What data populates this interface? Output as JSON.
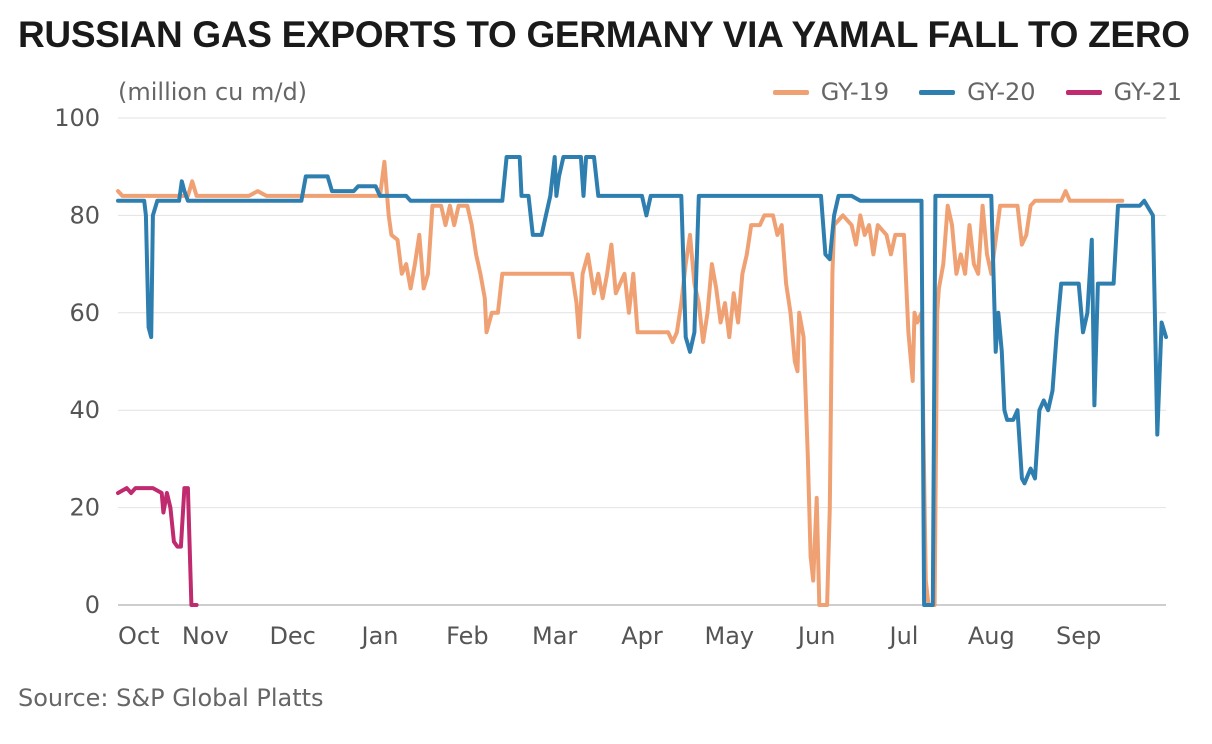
{
  "title": "RUSSIAN GAS EXPORTS TO GERMANY VIA YAMAL FALL TO ZERO",
  "unit_label": "(million cu m/d)",
  "source": "Source: S&P Global Platts",
  "chart_data": {
    "type": "line",
    "ylim": [
      0,
      100
    ],
    "xlim": [
      0,
      12
    ],
    "y_ticks": [
      0,
      20,
      40,
      60,
      80,
      100
    ],
    "y_tick_labels": [
      "0",
      "20",
      "40",
      "60",
      "80",
      "100"
    ],
    "x_ticks": [
      0,
      1,
      2,
      3,
      4,
      5,
      6,
      7,
      8,
      9,
      10,
      11
    ],
    "x_tick_labels": [
      "Oct",
      "Nov",
      "Dec",
      "Jan",
      "Feb",
      "Mar",
      "Apr",
      "May",
      "Jun",
      "Jul",
      "Aug",
      "Sep"
    ],
    "grid": true,
    "legend_position": "top-right",
    "series": [
      {
        "name": "GY-19",
        "color": "#f0a173",
        "points": [
          [
            0.0,
            85
          ],
          [
            0.05,
            84
          ],
          [
            0.5,
            84
          ],
          [
            0.8,
            84
          ],
          [
            0.85,
            87
          ],
          [
            0.9,
            84
          ],
          [
            1.5,
            84
          ],
          [
            1.6,
            85
          ],
          [
            1.7,
            84
          ],
          [
            2.5,
            84
          ],
          [
            3.0,
            84
          ],
          [
            3.05,
            91
          ],
          [
            3.1,
            80
          ],
          [
            3.13,
            76
          ],
          [
            3.2,
            75
          ],
          [
            3.25,
            68
          ],
          [
            3.3,
            70
          ],
          [
            3.35,
            65
          ],
          [
            3.4,
            70
          ],
          [
            3.45,
            76
          ],
          [
            3.5,
            65
          ],
          [
            3.55,
            68
          ],
          [
            3.6,
            82
          ],
          [
            3.7,
            82
          ],
          [
            3.75,
            78
          ],
          [
            3.8,
            82
          ],
          [
            3.85,
            78
          ],
          [
            3.9,
            82
          ],
          [
            4.0,
            82
          ],
          [
            4.05,
            78
          ],
          [
            4.1,
            72
          ],
          [
            4.15,
            68
          ],
          [
            4.2,
            63
          ],
          [
            4.22,
            56
          ],
          [
            4.28,
            60
          ],
          [
            4.35,
            60
          ],
          [
            4.4,
            68
          ],
          [
            4.5,
            68
          ],
          [
            5.0,
            68
          ],
          [
            5.2,
            68
          ],
          [
            5.25,
            62
          ],
          [
            5.28,
            55
          ],
          [
            5.32,
            68
          ],
          [
            5.38,
            72
          ],
          [
            5.45,
            64
          ],
          [
            5.5,
            68
          ],
          [
            5.55,
            63
          ],
          [
            5.6,
            68
          ],
          [
            5.65,
            74
          ],
          [
            5.7,
            64
          ],
          [
            5.8,
            68
          ],
          [
            5.85,
            60
          ],
          [
            5.9,
            68
          ],
          [
            5.95,
            56
          ],
          [
            6.0,
            56
          ],
          [
            6.3,
            56
          ],
          [
            6.35,
            54
          ],
          [
            6.4,
            56
          ],
          [
            6.45,
            62
          ],
          [
            6.5,
            70
          ],
          [
            6.55,
            76
          ],
          [
            6.6,
            66
          ],
          [
            6.65,
            62
          ],
          [
            6.7,
            54
          ],
          [
            6.75,
            60
          ],
          [
            6.8,
            70
          ],
          [
            6.85,
            65
          ],
          [
            6.9,
            58
          ],
          [
            6.95,
            62
          ],
          [
            7.0,
            55
          ],
          [
            7.05,
            64
          ],
          [
            7.1,
            58
          ],
          [
            7.15,
            68
          ],
          [
            7.2,
            72
          ],
          [
            7.25,
            78
          ],
          [
            7.35,
            78
          ],
          [
            7.4,
            80
          ],
          [
            7.5,
            80
          ],
          [
            7.55,
            76
          ],
          [
            7.6,
            78
          ],
          [
            7.65,
            66
          ],
          [
            7.7,
            60
          ],
          [
            7.75,
            50
          ],
          [
            7.78,
            48
          ],
          [
            7.8,
            60
          ],
          [
            7.85,
            55
          ],
          [
            7.9,
            30
          ],
          [
            7.93,
            10
          ],
          [
            7.96,
            5
          ],
          [
            8.0,
            22
          ],
          [
            8.03,
            0
          ],
          [
            8.12,
            0
          ],
          [
            8.15,
            20
          ],
          [
            8.18,
            68
          ],
          [
            8.2,
            78
          ],
          [
            8.3,
            80
          ],
          [
            8.4,
            78
          ],
          [
            8.45,
            74
          ],
          [
            8.5,
            80
          ],
          [
            8.55,
            76
          ],
          [
            8.6,
            78
          ],
          [
            8.65,
            72
          ],
          [
            8.7,
            78
          ],
          [
            8.8,
            76
          ],
          [
            8.85,
            72
          ],
          [
            8.9,
            76
          ],
          [
            9.0,
            76
          ],
          [
            9.05,
            56
          ],
          [
            9.1,
            46
          ],
          [
            9.12,
            60
          ],
          [
            9.15,
            58
          ],
          [
            9.2,
            60
          ],
          [
            9.25,
            5
          ],
          [
            9.28,
            0
          ],
          [
            9.35,
            0
          ],
          [
            9.38,
            60
          ],
          [
            9.4,
            65
          ],
          [
            9.45,
            70
          ],
          [
            9.5,
            82
          ],
          [
            9.55,
            78
          ],
          [
            9.6,
            68
          ],
          [
            9.65,
            72
          ],
          [
            9.7,
            68
          ],
          [
            9.75,
            78
          ],
          [
            9.8,
            70
          ],
          [
            9.85,
            68
          ],
          [
            9.9,
            82
          ],
          [
            9.95,
            72
          ],
          [
            10.0,
            68
          ],
          [
            10.1,
            82
          ],
          [
            10.3,
            82
          ],
          [
            10.35,
            74
          ],
          [
            10.4,
            76
          ],
          [
            10.45,
            82
          ],
          [
            10.5,
            83
          ],
          [
            10.8,
            83
          ],
          [
            10.85,
            85
          ],
          [
            10.9,
            83
          ],
          [
            11.2,
            83
          ],
          [
            11.5,
            83
          ]
        ]
      },
      {
        "name": "GY-20",
        "color": "#2e7fb0",
        "points": [
          [
            0.0,
            83
          ],
          [
            0.3,
            83
          ],
          [
            0.32,
            80
          ],
          [
            0.35,
            57
          ],
          [
            0.38,
            55
          ],
          [
            0.4,
            80
          ],
          [
            0.45,
            83
          ],
          [
            0.7,
            83
          ],
          [
            0.73,
            87
          ],
          [
            0.76,
            85
          ],
          [
            0.8,
            83
          ],
          [
            1.5,
            83
          ],
          [
            2.1,
            83
          ],
          [
            2.15,
            88
          ],
          [
            2.4,
            88
          ],
          [
            2.45,
            85
          ],
          [
            2.7,
            85
          ],
          [
            2.75,
            86
          ],
          [
            2.95,
            86
          ],
          [
            3.0,
            84
          ],
          [
            3.3,
            84
          ],
          [
            3.35,
            83
          ],
          [
            4.4,
            83
          ],
          [
            4.45,
            92
          ],
          [
            4.6,
            92
          ],
          [
            4.62,
            84
          ],
          [
            4.7,
            84
          ],
          [
            4.75,
            76
          ],
          [
            4.85,
            76
          ],
          [
            4.9,
            80
          ],
          [
            4.95,
            84
          ],
          [
            5.0,
            92
          ],
          [
            5.02,
            84
          ],
          [
            5.05,
            88
          ],
          [
            5.1,
            92
          ],
          [
            5.3,
            92
          ],
          [
            5.33,
            84
          ],
          [
            5.36,
            92
          ],
          [
            5.45,
            92
          ],
          [
            5.5,
            84
          ],
          [
            5.9,
            84
          ],
          [
            6.0,
            84
          ],
          [
            6.05,
            80
          ],
          [
            6.1,
            84
          ],
          [
            6.4,
            84
          ],
          [
            6.45,
            84
          ],
          [
            6.5,
            55
          ],
          [
            6.55,
            52
          ],
          [
            6.6,
            56
          ],
          [
            6.65,
            84
          ],
          [
            7.0,
            84
          ],
          [
            7.1,
            84
          ],
          [
            7.2,
            84
          ],
          [
            8.0,
            84
          ],
          [
            8.05,
            84
          ],
          [
            8.1,
            72
          ],
          [
            8.15,
            71
          ],
          [
            8.2,
            80
          ],
          [
            8.25,
            84
          ],
          [
            8.4,
            84
          ],
          [
            8.5,
            83
          ],
          [
            9.0,
            83
          ],
          [
            9.2,
            83
          ],
          [
            9.23,
            0
          ],
          [
            9.33,
            0
          ],
          [
            9.36,
            84
          ],
          [
            9.5,
            84
          ],
          [
            10.0,
            84
          ],
          [
            10.05,
            52
          ],
          [
            10.08,
            60
          ],
          [
            10.12,
            52
          ],
          [
            10.15,
            40
          ],
          [
            10.18,
            38
          ],
          [
            10.25,
            38
          ],
          [
            10.3,
            40
          ],
          [
            10.35,
            26
          ],
          [
            10.38,
            25
          ],
          [
            10.45,
            28
          ],
          [
            10.5,
            26
          ],
          [
            10.55,
            40
          ],
          [
            10.6,
            42
          ],
          [
            10.65,
            40
          ],
          [
            10.7,
            44
          ],
          [
            10.75,
            56
          ],
          [
            10.8,
            66
          ],
          [
            10.9,
            66
          ],
          [
            11.0,
            66
          ],
          [
            11.05,
            56
          ],
          [
            11.1,
            60
          ],
          [
            11.15,
            75
          ],
          [
            11.18,
            41
          ],
          [
            11.22,
            66
          ],
          [
            11.4,
            66
          ],
          [
            11.45,
            82
          ],
          [
            11.7,
            82
          ],
          [
            11.75,
            83
          ],
          [
            11.85,
            80
          ],
          [
            11.9,
            35
          ],
          [
            11.95,
            58
          ],
          [
            12.0,
            55
          ]
        ]
      },
      {
        "name": "GY-21",
        "color": "#c02a6e",
        "points": [
          [
            0.0,
            23
          ],
          [
            0.1,
            24
          ],
          [
            0.15,
            23
          ],
          [
            0.2,
            24
          ],
          [
            0.3,
            24
          ],
          [
            0.4,
            24
          ],
          [
            0.5,
            23
          ],
          [
            0.52,
            19
          ],
          [
            0.56,
            23
          ],
          [
            0.6,
            20
          ],
          [
            0.64,
            13
          ],
          [
            0.68,
            12
          ],
          [
            0.72,
            12
          ],
          [
            0.76,
            24
          ],
          [
            0.8,
            24
          ],
          [
            0.84,
            0
          ],
          [
            0.9,
            0
          ]
        ]
      }
    ]
  }
}
